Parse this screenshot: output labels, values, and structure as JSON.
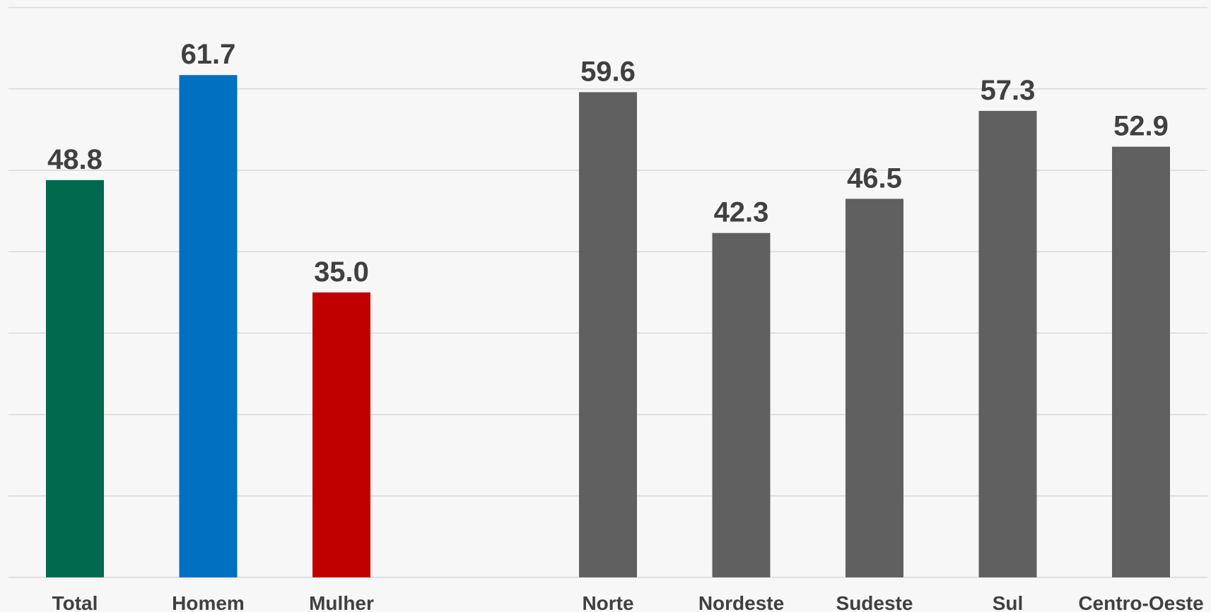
{
  "chart_data": {
    "type": "bar",
    "categories": [
      "Total",
      "Homem",
      "Mulher",
      "",
      "Norte",
      "Nordeste",
      "Sudeste",
      "Sul",
      "Centro-Oeste"
    ],
    "values": [
      48.8,
      61.7,
      35.0,
      null,
      59.6,
      42.3,
      46.5,
      57.3,
      52.9
    ],
    "value_labels": [
      "48.8",
      "61.7",
      "35.0",
      "",
      "59.6",
      "42.3",
      "46.5",
      "57.3",
      "52.9"
    ],
    "colors": [
      "#00684d",
      "#0070c0",
      "#c00000",
      "",
      "#606060",
      "#606060",
      "#606060",
      "#606060",
      "#606060"
    ],
    "title": "",
    "xlabel": "",
    "ylabel": "",
    "ylim": [
      0,
      70
    ],
    "grid_step": 10,
    "grid": true,
    "legend": "none"
  }
}
